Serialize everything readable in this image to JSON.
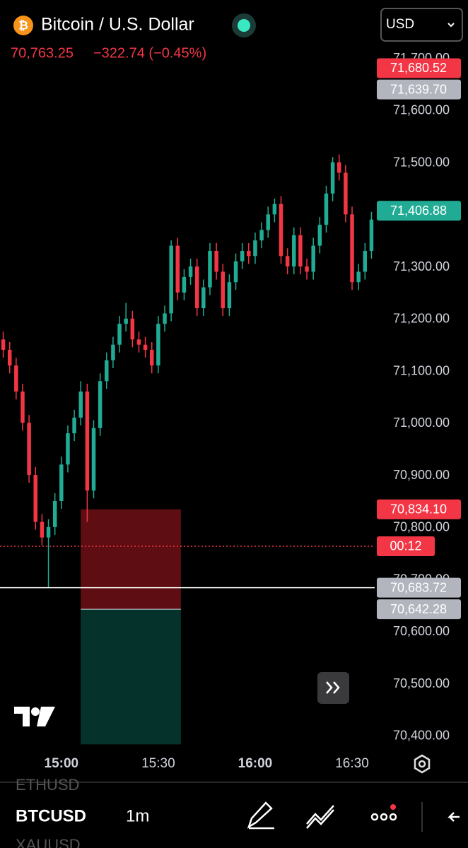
{
  "header": {
    "title": "Bitcoin / U.S. Dollar",
    "price": "70,763.25",
    "change": "−322.74 (−0.45%)",
    "currency": "USD"
  },
  "bottom_bar": {
    "symbols": [
      "ETHUSD",
      "BTCUSD",
      "XAUUSD"
    ],
    "interval": "1m"
  },
  "chart_data": {
    "type": "candlestick",
    "up_color": "#22ab94",
    "down_color": "#f23645",
    "xlim": [
      881,
      997
    ],
    "ylim": [
      70374,
      71730
    ],
    "xticks": [
      {
        "value": 900,
        "label": "15:00"
      },
      {
        "value": 930,
        "label": "15:30"
      },
      {
        "value": 960,
        "label": "16:00"
      },
      {
        "value": 990,
        "label": "16:30"
      }
    ],
    "yticks": [
      {
        "value": 70400,
        "label": "70,400.00"
      },
      {
        "value": 70500,
        "label": "70,500.00"
      },
      {
        "value": 70600,
        "label": "70,600.00"
      },
      {
        "value": 70700,
        "label": "70,700.00"
      },
      {
        "value": 70800,
        "label": "70,800.00"
      },
      {
        "value": 70900,
        "label": "70,900.00"
      },
      {
        "value": 71000,
        "label": "71,000.00"
      },
      {
        "value": 71100,
        "label": "71,100.00"
      },
      {
        "value": 71200,
        "label": "71,200.00"
      },
      {
        "value": 71300,
        "label": "71,300.00"
      },
      {
        "value": 71400,
        "label": "71,400.00"
      },
      {
        "value": 71500,
        "label": "71,500.00"
      },
      {
        "value": 71600,
        "label": "71,600.00"
      },
      {
        "value": 71700,
        "label": "71,700.00"
      }
    ],
    "x": [
      882,
      884,
      886,
      888,
      890,
      892,
      894,
      896,
      898,
      900,
      902,
      904,
      906,
      908,
      910,
      912,
      914,
      916,
      918,
      920,
      922,
      924,
      926,
      928,
      930,
      932,
      934,
      936,
      938,
      940,
      942,
      944,
      946,
      948,
      950,
      952,
      954,
      956,
      958,
      960,
      962,
      964,
      966,
      968,
      970,
      972,
      974,
      976,
      978,
      980,
      982,
      984,
      986,
      988,
      990,
      992,
      994,
      996
    ],
    "open": [
      71160,
      71140,
      71110,
      71060,
      71000,
      70900,
      70810,
      70780,
      70800,
      70850,
      70920,
      70980,
      71010,
      71060,
      70870,
      70990,
      71080,
      71120,
      71150,
      71190,
      71200,
      71160,
      71150,
      71140,
      71110,
      71190,
      71210,
      71340,
      71250,
      71280,
      71300,
      71220,
      71260,
      71330,
      71290,
      71220,
      71270,
      71310,
      71330,
      71320,
      71350,
      71370,
      71400,
      71420,
      71320,
      71300,
      71360,
      71300,
      71290,
      71340,
      71380,
      71440,
      71500,
      71480,
      71400,
      71270,
      71290,
      71330
    ],
    "high": [
      71175,
      71155,
      71125,
      71075,
      71015,
      70915,
      70825,
      70815,
      70865,
      70935,
      70995,
      71025,
      71080,
      71075,
      71005,
      71095,
      71135,
      71165,
      71205,
      71230,
      71215,
      71175,
      71165,
      71155,
      71205,
      71225,
      71350,
      71355,
      71295,
      71315,
      71315,
      71275,
      71345,
      71345,
      71305,
      71285,
      71325,
      71345,
      71345,
      71365,
      71385,
      71415,
      71430,
      71435,
      71335,
      71375,
      71375,
      71315,
      71355,
      71395,
      71455,
      71510,
      71515,
      71495,
      71415,
      71305,
      71345,
      71405
    ],
    "low": [
      71125,
      71095,
      71045,
      70985,
      70885,
      70795,
      70765,
      70683,
      70785,
      70835,
      70905,
      70965,
      70995,
      70810,
      70855,
      70975,
      71065,
      71105,
      71135,
      71175,
      71145,
      71135,
      71125,
      71095,
      71095,
      71175,
      71195,
      71235,
      71235,
      71265,
      71205,
      71205,
      71245,
      71275,
      71205,
      71205,
      71255,
      71295,
      71305,
      71305,
      71335,
      71355,
      71385,
      71305,
      71285,
      71285,
      71285,
      71275,
      71275,
      71325,
      71365,
      71425,
      71465,
      71385,
      71255,
      71255,
      71275,
      71315
    ],
    "close": [
      71140,
      71110,
      71060,
      71000,
      70900,
      70810,
      70780,
      70800,
      70850,
      70920,
      70980,
      71010,
      71060,
      70870,
      70990,
      71080,
      71120,
      71150,
      71190,
      71200,
      71160,
      71150,
      71140,
      71110,
      71190,
      71210,
      71340,
      71250,
      71280,
      71300,
      71220,
      71260,
      71330,
      71290,
      71220,
      71270,
      71310,
      71330,
      71320,
      71350,
      71370,
      71400,
      71420,
      71320,
      71300,
      71360,
      71300,
      71290,
      71340,
      71380,
      71440,
      71500,
      71480,
      71400,
      71270,
      71290,
      71330,
      71390
    ],
    "position": {
      "start": 906,
      "end": 937,
      "stop": 70834.1,
      "entry": 70642.28,
      "target": 70383,
      "stop_color": "#5e0e12",
      "target_color": "#05332b"
    },
    "horizontal_line": {
      "value": 70683.72,
      "color": "#ffffff"
    },
    "countdown": {
      "value": 70763.25,
      "label": "00:12",
      "color": "#f23645"
    },
    "price_labels": [
      {
        "value": 71680.52,
        "label": "71,680.52",
        "color": "#f23645"
      },
      {
        "value": 71639.7,
        "label": "71,639.70",
        "color": "#b2b5be"
      },
      {
        "value": 71406.88,
        "label": "71,406.88",
        "color": "#22ab94"
      },
      {
        "value": 70834.1,
        "label": "70,834.10",
        "color": "#f23645"
      },
      {
        "value": 70683.72,
        "label": "70,683.72",
        "color": "#b2b5be"
      },
      {
        "value": 70642.28,
        "label": "70,642.28",
        "color": "#b2b5be"
      }
    ]
  }
}
